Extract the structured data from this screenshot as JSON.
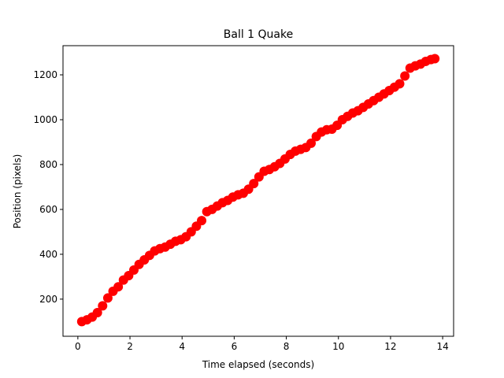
{
  "chart_data": {
    "type": "scatter",
    "title": "Ball 1 Quake",
    "x_label": "Time elapsed (seconds)",
    "y_label": "Position (pixels)",
    "color": "#ff0000",
    "x": [
      0.15,
      0.35,
      0.55,
      0.75,
      0.95,
      1.15,
      1.35,
      1.55,
      1.75,
      1.95,
      2.15,
      2.35,
      2.55,
      2.75,
      2.95,
      3.15,
      3.35,
      3.55,
      3.75,
      3.95,
      4.15,
      4.35,
      4.55,
      4.75,
      4.95,
      5.15,
      5.35,
      5.55,
      5.75,
      5.95,
      6.15,
      6.35,
      6.55,
      6.75,
      6.95,
      7.15,
      7.35,
      7.55,
      7.75,
      7.95,
      8.15,
      8.35,
      8.55,
      8.75,
      8.95,
      9.15,
      9.35,
      9.55,
      9.75,
      9.95,
      10.15,
      10.35,
      10.55,
      10.75,
      10.95,
      11.15,
      11.35,
      11.55,
      11.75,
      11.95,
      12.15,
      12.35,
      12.55,
      12.75,
      12.95,
      13.15,
      13.35,
      13.55,
      13.7
    ],
    "values": [
      100,
      108,
      120,
      140,
      170,
      205,
      235,
      255,
      285,
      305,
      330,
      355,
      375,
      395,
      415,
      425,
      432,
      445,
      458,
      465,
      478,
      500,
      525,
      550,
      590,
      600,
      615,
      630,
      640,
      655,
      665,
      672,
      690,
      715,
      745,
      770,
      778,
      790,
      805,
      825,
      845,
      860,
      868,
      876,
      895,
      925,
      945,
      955,
      958,
      975,
      1000,
      1015,
      1030,
      1040,
      1055,
      1070,
      1085,
      1100,
      1115,
      1130,
      1145,
      1160,
      1195,
      1230,
      1240,
      1248,
      1260,
      1268,
      1272
    ],
    "xlim": [
      -0.57,
      14.42
    ],
    "ylim": [
      34.5,
      1330
    ],
    "xticks": [
      0,
      2,
      4,
      6,
      8,
      10,
      12,
      14
    ],
    "yticks": [
      200,
      400,
      600,
      800,
      1000,
      1200
    ]
  }
}
